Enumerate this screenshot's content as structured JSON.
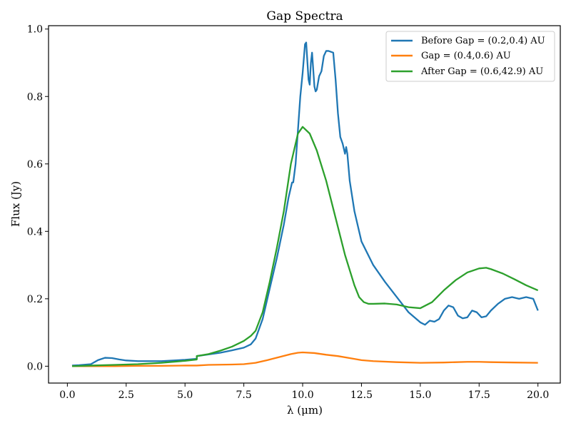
{
  "chart_data": {
    "type": "line",
    "title": "Gap Spectra",
    "xlabel": "λ (μm)",
    "ylabel": "Flux (Jy)",
    "xlim": [
      -0.8,
      20.95
    ],
    "ylim": [
      -0.05,
      1.01
    ],
    "xticks": [
      0.0,
      2.5,
      5.0,
      7.5,
      10.0,
      12.5,
      15.0,
      17.5,
      20.0
    ],
    "xtick_labels": [
      "0.0",
      "2.5",
      "5.0",
      "7.5",
      "10.0",
      "12.5",
      "15.0",
      "17.5",
      "20.0"
    ],
    "yticks": [
      0.0,
      0.2,
      0.4,
      0.6,
      0.8,
      1.0
    ],
    "ytick_labels": [
      "0.0",
      "0.2",
      "0.4",
      "0.6",
      "0.8",
      "1.0"
    ],
    "grid": false,
    "legend_position": "top-right",
    "colors": {
      "series_0": "#1f77b4",
      "series_1": "#ff7f0e",
      "series_2": "#2ca02c"
    },
    "series": [
      {
        "name": "Before Gap = (0.2,0.4) AU",
        "color": "#1f77b4",
        "x": [
          0.2,
          0.5,
          1.0,
          1.3,
          1.6,
          1.9,
          2.2,
          2.5,
          3.0,
          4.0,
          5.0,
          5.5,
          5.5,
          6.0,
          6.5,
          7.0,
          7.5,
          7.8,
          8.0,
          8.3,
          8.6,
          8.9,
          9.2,
          9.4,
          9.55,
          9.6,
          9.7,
          9.8,
          9.9,
          10.0,
          10.1,
          10.15,
          10.25,
          10.3,
          10.35,
          10.4,
          10.5,
          10.55,
          10.6,
          10.7,
          10.8,
          10.9,
          11.0,
          11.1,
          11.3,
          11.4,
          11.5,
          11.6,
          11.7,
          11.75,
          11.8,
          11.85,
          11.9,
          12.0,
          12.2,
          12.5,
          13.0,
          13.5,
          14.0,
          14.5,
          15.0,
          15.2,
          15.4,
          15.6,
          15.8,
          16.0,
          16.2,
          16.4,
          16.6,
          16.8,
          17.0,
          17.2,
          17.4,
          17.6,
          17.8,
          18.0,
          18.3,
          18.6,
          18.9,
          19.2,
          19.5,
          19.8,
          20.0
        ],
        "y": [
          0.002,
          0.003,
          0.006,
          0.018,
          0.025,
          0.024,
          0.02,
          0.017,
          0.015,
          0.015,
          0.019,
          0.022,
          0.03,
          0.035,
          0.04,
          0.047,
          0.055,
          0.065,
          0.082,
          0.14,
          0.23,
          0.32,
          0.42,
          0.5,
          0.545,
          0.545,
          0.6,
          0.7,
          0.8,
          0.87,
          0.955,
          0.96,
          0.85,
          0.835,
          0.9,
          0.93,
          0.83,
          0.815,
          0.82,
          0.86,
          0.875,
          0.92,
          0.935,
          0.935,
          0.93,
          0.85,
          0.75,
          0.68,
          0.66,
          0.645,
          0.63,
          0.65,
          0.63,
          0.55,
          0.46,
          0.37,
          0.3,
          0.25,
          0.205,
          0.16,
          0.13,
          0.123,
          0.135,
          0.132,
          0.14,
          0.165,
          0.18,
          0.175,
          0.15,
          0.142,
          0.145,
          0.165,
          0.16,
          0.145,
          0.148,
          0.165,
          0.185,
          0.2,
          0.205,
          0.2,
          0.205,
          0.2,
          0.165
        ]
      },
      {
        "name": "Gap = (0.4,0.6) AU",
        "color": "#ff7f0e",
        "x": [
          0.2,
          1.0,
          2.0,
          3.0,
          4.0,
          5.0,
          5.5,
          6.0,
          7.0,
          7.5,
          8.0,
          8.5,
          9.0,
          9.5,
          9.8,
          10.0,
          10.5,
          11.0,
          11.5,
          12.0,
          12.5,
          13.0,
          14.0,
          15.0,
          16.0,
          17.0,
          17.5,
          18.0,
          19.0,
          20.0
        ],
        "y": [
          0.0,
          0.0,
          0.0,
          0.001,
          0.001,
          0.002,
          0.002,
          0.004,
          0.005,
          0.006,
          0.01,
          0.018,
          0.027,
          0.036,
          0.04,
          0.041,
          0.039,
          0.034,
          0.03,
          0.024,
          0.018,
          0.015,
          0.012,
          0.01,
          0.011,
          0.013,
          0.013,
          0.012,
          0.011,
          0.01
        ]
      },
      {
        "name": "After Gap = (0.6,42.9) AU",
        "color": "#2ca02c",
        "x": [
          0.2,
          1.0,
          2.0,
          3.0,
          4.0,
          5.0,
          5.5,
          5.5,
          6.0,
          6.5,
          7.0,
          7.5,
          7.8,
          8.0,
          8.3,
          8.6,
          8.9,
          9.2,
          9.5,
          9.8,
          10.0,
          10.3,
          10.6,
          11.0,
          11.4,
          11.8,
          12.2,
          12.4,
          12.6,
          12.8,
          13.0,
          13.5,
          14.0,
          14.5,
          15.0,
          15.5,
          16.0,
          16.5,
          17.0,
          17.5,
          17.8,
          18.0,
          18.5,
          19.0,
          19.5,
          20.0
        ],
        "y": [
          0.0,
          0.002,
          0.004,
          0.006,
          0.01,
          0.016,
          0.02,
          0.03,
          0.036,
          0.046,
          0.058,
          0.075,
          0.09,
          0.105,
          0.16,
          0.25,
          0.35,
          0.46,
          0.6,
          0.69,
          0.71,
          0.69,
          0.64,
          0.55,
          0.44,
          0.33,
          0.24,
          0.205,
          0.19,
          0.185,
          0.185,
          0.186,
          0.183,
          0.175,
          0.172,
          0.19,
          0.225,
          0.255,
          0.278,
          0.29,
          0.292,
          0.288,
          0.275,
          0.258,
          0.24,
          0.225
        ]
      }
    ]
  }
}
